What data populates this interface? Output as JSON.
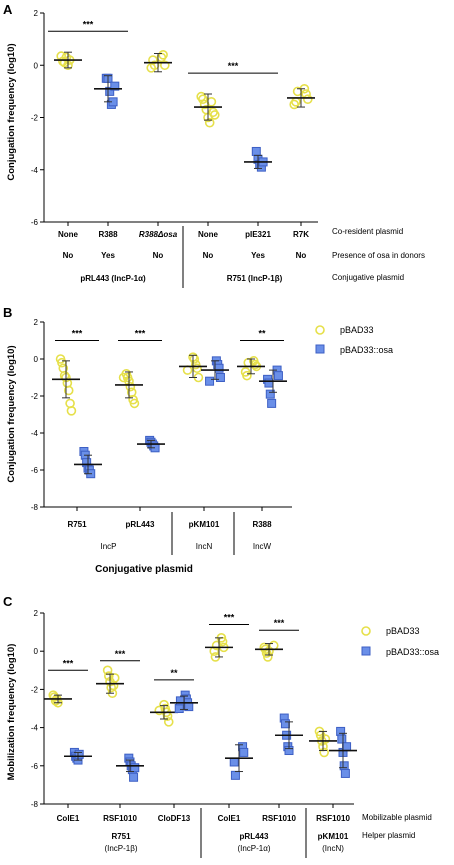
{
  "colors": {
    "yellow": "#e6e04a",
    "blue": "#6a8fe8",
    "black": "#000000"
  },
  "chart_data": [
    {
      "type": "scatter",
      "panel": "A",
      "ylabel": "Conjugation frequency (log10)",
      "ylim": [
        -6,
        2
      ],
      "yticks": [
        "2",
        "0",
        "-2",
        "-4",
        "-6"
      ],
      "categories": [
        "None",
        "R388",
        "R388Δosa",
        "None",
        "pIE321",
        "R7K"
      ],
      "groups": [
        {
          "marker": "circle",
          "color": "yellow",
          "mean": 0.2,
          "sd": 0.3,
          "points": [
            0.35,
            0.15,
            0.1,
            0.3,
            0.0,
            0.2
          ]
        },
        {
          "marker": "square",
          "color": "blue",
          "mean": -0.9,
          "sd": 0.5,
          "points": [
            -0.5,
            -0.5,
            -1.0,
            -1.5,
            -1.4,
            -0.8
          ]
        },
        {
          "marker": "circle",
          "color": "yellow",
          "mean": 0.1,
          "sd": 0.35,
          "points": [
            0.3,
            0.4,
            0.0,
            -0.1,
            0.2,
            0.0
          ]
        },
        {
          "marker": "circle",
          "color": "yellow",
          "mean": -1.6,
          "sd": 0.5,
          "points": [
            -1.2,
            -1.3,
            -1.5,
            -1.7,
            -2.0,
            -2.2,
            -1.4,
            -1.8,
            -1.9
          ]
        },
        {
          "marker": "square",
          "color": "blue",
          "mean": -3.7,
          "sd": 0.25,
          "points": [
            -3.3,
            -3.6,
            -3.8,
            -3.9,
            -3.7
          ]
        },
        {
          "marker": "circle",
          "color": "yellow",
          "mean": -1.25,
          "sd": 0.35,
          "points": [
            -0.9,
            -1.1,
            -1.3,
            -1.5,
            -1.4,
            -1.0
          ]
        }
      ],
      "significance": [
        {
          "from": 0,
          "to": 1,
          "label": "***",
          "y": 1.3
        },
        {
          "from": 3,
          "to": 4,
          "label": "***",
          "y": -0.3
        }
      ],
      "table_rows": [
        {
          "cells": [
            "No",
            "Yes",
            "No",
            "No",
            "Yes",
            "No"
          ],
          "label": "Presence of osa in donors"
        }
      ],
      "group_labels": [
        {
          "from": 0,
          "to": 2,
          "text": "pRL443 (IncP-1α)"
        },
        {
          "from": 3,
          "to": 5,
          "text": "R751 (IncP-1β)"
        }
      ],
      "category_row_label": "Co-resident plasmid",
      "group_row_label": "Conjugative plasmid"
    },
    {
      "type": "scatter",
      "panel": "B",
      "ylabel": "Conjugation frequency (log10)",
      "ylim": [
        -8,
        2
      ],
      "yticks": [
        "2",
        "0",
        "-2",
        "-4",
        "-6",
        "-8"
      ],
      "categories": [
        "R751",
        "pRL443",
        "pKM101",
        "R388"
      ],
      "series_names": [
        "pBAD33",
        "pBAD33::osa"
      ],
      "groups": [
        {
          "cat": 0,
          "series": 0,
          "mean": -1.1,
          "sd": 1.0,
          "points": [
            0.0,
            -0.2,
            -0.5,
            -0.9,
            -1.0,
            -1.3,
            -1.7,
            -2.4,
            -2.8
          ]
        },
        {
          "cat": 0,
          "series": 1,
          "mean": -5.7,
          "sd": 0.5,
          "points": [
            -5.0,
            -5.2,
            -5.6,
            -5.9,
            -6.0,
            -6.2
          ]
        },
        {
          "cat": 1,
          "series": 0,
          "mean": -1.4,
          "sd": 0.7,
          "points": [
            -0.8,
            -1.0,
            -1.2,
            -1.5,
            -1.8,
            -2.2,
            -2.4,
            -1.0
          ]
        },
        {
          "cat": 1,
          "series": 1,
          "mean": -4.6,
          "sd": 0.2,
          "points": [
            -4.4,
            -4.5,
            -4.6,
            -4.7,
            -4.8
          ]
        },
        {
          "cat": 2,
          "series": 0,
          "mean": -0.4,
          "sd": 0.6,
          "points": [
            0.1,
            0.0,
            -0.3,
            -0.5,
            -1.0,
            -0.6
          ]
        },
        {
          "cat": 2,
          "series": 1,
          "mean": -0.6,
          "sd": 0.5,
          "points": [
            -0.1,
            -0.3,
            -0.5,
            -1.0,
            -1.2
          ]
        },
        {
          "cat": 3,
          "series": 0,
          "mean": -0.4,
          "sd": 0.4,
          "points": [
            -0.1,
            -0.3,
            -0.4,
            -0.7,
            -0.9,
            -0.2
          ]
        },
        {
          "cat": 3,
          "series": 1,
          "mean": -1.2,
          "sd": 0.6,
          "points": [
            -0.6,
            -0.9,
            -1.1,
            -1.3,
            -1.9,
            -2.4
          ]
        }
      ],
      "significance": [
        {
          "cat": 0,
          "label": "***",
          "y": 1.0
        },
        {
          "cat": 1,
          "label": "***",
          "y": 1.0
        },
        {
          "cat": 3,
          "label": "**",
          "y": 1.0
        }
      ],
      "group_labels": [
        {
          "from": 0,
          "to": 1,
          "text": "IncP"
        },
        {
          "from": 2,
          "to": 2,
          "text": "IncN"
        },
        {
          "from": 3,
          "to": 3,
          "text": "IncW"
        }
      ],
      "xlabel": "Conjugative plasmid"
    },
    {
      "type": "scatter",
      "panel": "C",
      "ylabel": "Mobilization frequency (log10)",
      "ylim": [
        -8,
        2
      ],
      "yticks": [
        "2",
        "0",
        "-2",
        "-4",
        "-6",
        "-8"
      ],
      "categories": [
        "ColE1",
        "RSF1010",
        "CloDF13",
        "ColE1",
        "RSF1010",
        "RSF1010"
      ],
      "series_names": [
        "pBAD33",
        "pBAD33::osa"
      ],
      "groups": [
        {
          "cat": 0,
          "series": 0,
          "mean": -2.5,
          "sd": 0.2,
          "points": [
            -2.3,
            -2.4,
            -2.6,
            -2.5,
            -2.7
          ]
        },
        {
          "cat": 0,
          "series": 1,
          "mean": -5.5,
          "sd": 0.2,
          "points": [
            -5.3,
            -5.5,
            -5.6,
            -5.7,
            -5.4
          ]
        },
        {
          "cat": 1,
          "series": 0,
          "mean": -1.7,
          "sd": 0.5,
          "points": [
            -1.0,
            -1.3,
            -1.6,
            -1.9,
            -2.2,
            -1.8,
            -1.4
          ]
        },
        {
          "cat": 1,
          "series": 1,
          "mean": -6.0,
          "sd": 0.3,
          "points": [
            -5.6,
            -5.8,
            -6.0,
            -6.2,
            -6.6,
            -6.1
          ]
        },
        {
          "cat": 2,
          "series": 0,
          "mean": -3.2,
          "sd": 0.35,
          "points": [
            -2.8,
            -3.0,
            -3.2,
            -3.4,
            -3.7,
            -3.1
          ]
        },
        {
          "cat": 2,
          "series": 1,
          "mean": -2.7,
          "sd": 0.35,
          "points": [
            -2.3,
            -2.5,
            -2.7,
            -2.9,
            -3.0,
            -2.6
          ]
        },
        {
          "cat": 3,
          "series": 0,
          "mean": 0.2,
          "sd": 0.5,
          "points": [
            0.7,
            0.5,
            0.2,
            0.0,
            -0.3,
            0.3
          ]
        },
        {
          "cat": 3,
          "series": 1,
          "mean": -5.6,
          "sd": 0.7,
          "points": [
            -5.0,
            -5.3,
            -5.8,
            -6.5
          ]
        },
        {
          "cat": 4,
          "series": 0,
          "mean": 0.1,
          "sd": 0.3,
          "points": [
            0.3,
            0.2,
            0.1,
            -0.1,
            -0.3,
            0.0
          ]
        },
        {
          "cat": 4,
          "series": 1,
          "mean": -4.4,
          "sd": 0.7,
          "points": [
            -3.5,
            -3.8,
            -4.4,
            -5.0,
            -5.2
          ]
        },
        {
          "cat": 5,
          "series": 0,
          "mean": -4.7,
          "sd": 0.5,
          "points": [
            -4.2,
            -4.4,
            -4.7,
            -5.0,
            -5.3,
            -4.6
          ]
        },
        {
          "cat": 5,
          "series": 1,
          "mean": -5.2,
          "sd": 0.9,
          "points": [
            -4.2,
            -4.6,
            -5.3,
            -6.0,
            -6.4,
            -5.0
          ]
        }
      ],
      "significance": [
        {
          "cat": 0,
          "label": "***",
          "y": -1.0
        },
        {
          "cat": 1,
          "label": "***",
          "y": -0.5
        },
        {
          "cat": 2,
          "label": "**",
          "y": -1.5
        },
        {
          "cat": 3,
          "label": "***",
          "y": 1.4
        },
        {
          "cat": 4,
          "label": "***",
          "y": 1.1
        }
      ],
      "group_labels": [
        {
          "from": 0,
          "to": 2,
          "text": "R751",
          "sub": "(IncP-1β)"
        },
        {
          "from": 3,
          "to": 4,
          "text": "pRL443",
          "sub": "(IncP-1α)"
        },
        {
          "from": 5,
          "to": 5,
          "text": "pKM101",
          "sub": "(IncN)"
        }
      ],
      "category_row_label": "Mobilizable plasmid",
      "group_row_label": "Helper plasmid"
    }
  ]
}
